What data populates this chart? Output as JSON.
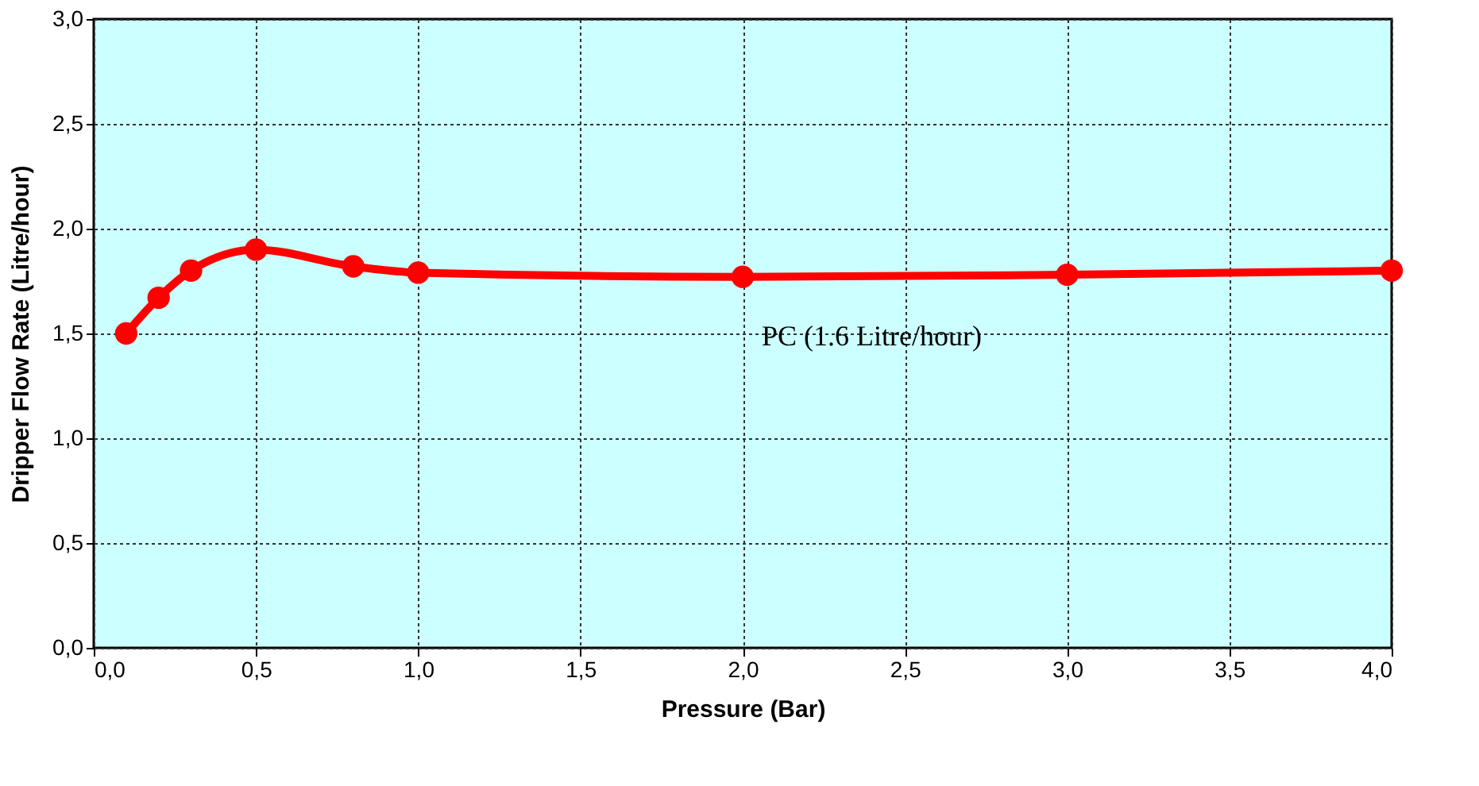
{
  "chart_data": {
    "type": "line",
    "xlabel": "Pressure (Bar)",
    "ylabel": "Dripper Flow Rate (Litre/hour)",
    "x": [
      0.1,
      0.2,
      0.3,
      0.5,
      0.8,
      1.0,
      2.0,
      3.0,
      4.0
    ],
    "series": [
      {
        "name": "PC  (1.6 Litre/hour)",
        "color": "#ff0000",
        "values": [
          1.5,
          1.67,
          1.8,
          1.9,
          1.82,
          1.79,
          1.77,
          1.78,
          1.8
        ]
      }
    ],
    "xlim": [
      0,
      4
    ],
    "ylim": [
      0,
      3
    ],
    "xticks": [
      {
        "value": 0,
        "label": "0,0"
      },
      {
        "value": 0.5,
        "label": "0,5"
      },
      {
        "value": 1,
        "label": "1,0"
      },
      {
        "value": 1.5,
        "label": "1,5"
      },
      {
        "value": 2,
        "label": "2,0"
      },
      {
        "value": 2.5,
        "label": "2,5"
      },
      {
        "value": 3,
        "label": "3,0"
      },
      {
        "value": 3.5,
        "label": "3,5"
      },
      {
        "value": 4,
        "label": "4,0"
      }
    ],
    "yticks": [
      {
        "value": 0,
        "label": "0,0"
      },
      {
        "value": 0.5,
        "label": "0,5"
      },
      {
        "value": 1,
        "label": "1,0"
      },
      {
        "value": 1.5,
        "label": "1,5"
      },
      {
        "value": 2,
        "label": "2,0"
      },
      {
        "value": 2.5,
        "label": "2,5"
      },
      {
        "value": 3,
        "label": "3,0"
      }
    ],
    "grid": true,
    "legend": false,
    "marker": "circle",
    "line_style": "solid"
  }
}
